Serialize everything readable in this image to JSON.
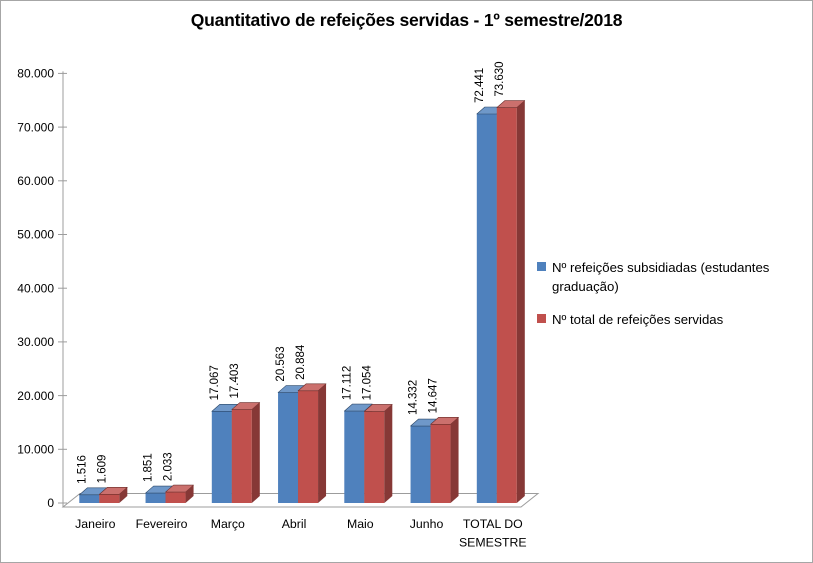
{
  "window": {
    "background": "#ffffff",
    "border_color": "#a6a6a6"
  },
  "chart_data": {
    "type": "bar",
    "effect": "3d-clustered-column",
    "title": "Quantitativo de refeições servidas - 1º semestre/2018",
    "categories": [
      "Janeiro",
      "Fevereiro",
      "Março",
      "Abril",
      "Maio",
      "Junho",
      "TOTAL DO SEMESTRE"
    ],
    "series": [
      {
        "name": "Nº refeições subsidiadas (estudantes graduação)",
        "color": "#4F81BD",
        "values": [
          1516,
          1851,
          17067,
          20563,
          17112,
          14332,
          72441
        ],
        "data_labels": [
          "1.516",
          "1.851",
          "17.067",
          "20.563",
          "17.112",
          "14.332",
          "72.441"
        ]
      },
      {
        "name": "Nº total de refeições servidas",
        "color": "#C0504D",
        "values": [
          1609,
          2033,
          17403,
          20884,
          17054,
          14647,
          73630
        ],
        "data_labels": [
          "1.609",
          "2.033",
          "17.403",
          "20.884",
          "17.054",
          "14.647",
          "73.630"
        ]
      }
    ],
    "xlabel": "",
    "ylabel": "",
    "ylim": [
      0,
      80000
    ],
    "ytick_step": 10000,
    "ytick_labels": [
      "0",
      "10.000",
      "20.000",
      "30.000",
      "40.000",
      "50.000",
      "60.000",
      "70.000",
      "80.000"
    ],
    "gridlines": false,
    "legend_position": "right",
    "axis_color": "#9c9c9c",
    "text_color": "#000000"
  }
}
